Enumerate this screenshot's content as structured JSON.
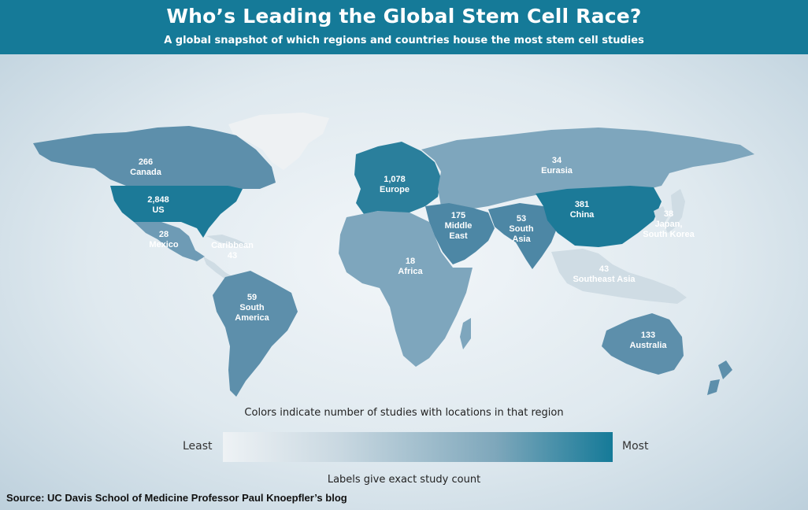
{
  "header": {
    "title": "Who’s Leading the Global Stem Cell Race?",
    "subtitle": "A global snapshot of which regions and countries house the most stem cell studies"
  },
  "regions": {
    "canada": {
      "count": "266",
      "name": "Canada"
    },
    "us": {
      "count": "2,848",
      "name": "US"
    },
    "mexico": {
      "count": "28",
      "name": "Mexico"
    },
    "caribbean": {
      "name": "Caribbean",
      "count": "43"
    },
    "south_america": {
      "count": "59",
      "name_line1": "South",
      "name_line2": "America"
    },
    "europe": {
      "count": "1,078",
      "name": "Europe"
    },
    "eurasia": {
      "count": "34",
      "name": "Eurasia"
    },
    "middle_east": {
      "count": "175",
      "name_line1": "Middle",
      "name_line2": "East"
    },
    "africa": {
      "count": "18",
      "name": "Africa"
    },
    "south_asia": {
      "count": "53",
      "name_line1": "South",
      "name_line2": "Asia"
    },
    "china": {
      "count": "381",
      "name": "China"
    },
    "japan_korea": {
      "count": "38",
      "name_line1": "Japan,",
      "name_line2": "South Korea"
    },
    "southeast_asia": {
      "count": "43",
      "name": "Southeast Asia"
    },
    "australia": {
      "count": "133",
      "name": "Australia"
    }
  },
  "legend": {
    "caption_top": "Colors indicate number of studies with locations in that region",
    "least": "Least",
    "most": "Most",
    "caption_bottom": "Labels give exact study count",
    "color_low": "#eef2f5",
    "color_high": "#157a98"
  },
  "source": "Source: UC Davis School of Medicine Professor Paul Knoepfler’s blog"
}
